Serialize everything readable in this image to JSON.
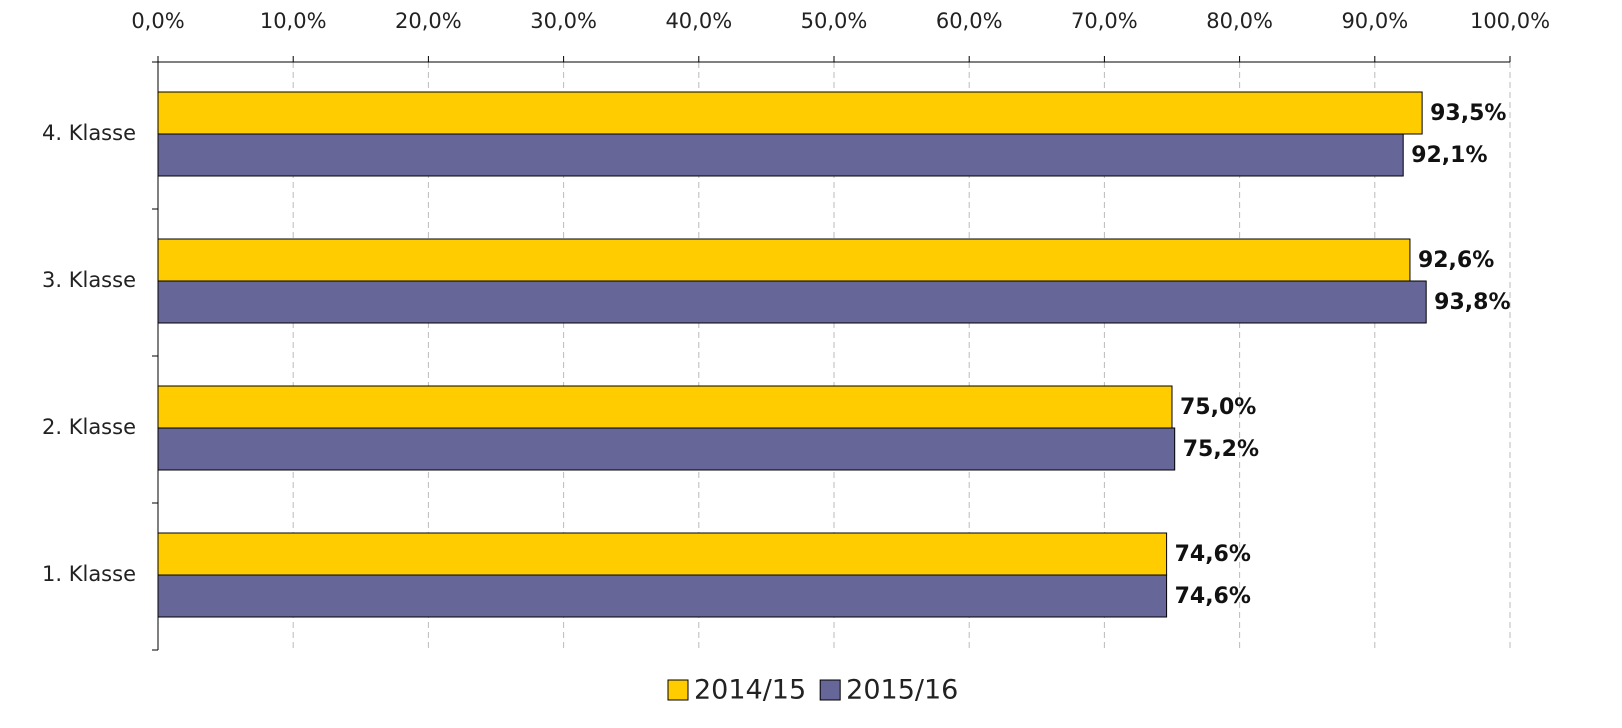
{
  "chart_data": {
    "type": "hbar",
    "categories": [
      "4. Klasse",
      "3. Klasse",
      "2. Klasse",
      "1. Klasse"
    ],
    "series": [
      {
        "name": "2014/15",
        "color": "#ffcc00",
        "values": [
          93.5,
          92.6,
          75.0,
          74.6
        ],
        "value_labels": [
          "93,5%",
          "92,6%",
          "75,0%",
          "74,6%"
        ]
      },
      {
        "name": "2015/16",
        "color": "#666699",
        "values": [
          92.1,
          93.8,
          75.2,
          74.6
        ],
        "value_labels": [
          "92,1%",
          "93,8%",
          "75,2%",
          "74,6%"
        ]
      }
    ],
    "xlim": [
      0,
      100
    ],
    "xticks": [
      {
        "value": 0,
        "label": "0,0%"
      },
      {
        "value": 10,
        "label": "10,0%"
      },
      {
        "value": 20,
        "label": "20,0%"
      },
      {
        "value": 30,
        "label": "30,0%"
      },
      {
        "value": 40,
        "label": "40,0%"
      },
      {
        "value": 50,
        "label": "50,0%"
      },
      {
        "value": 60,
        "label": "60,0%"
      },
      {
        "value": 70,
        "label": "70,0%"
      },
      {
        "value": 80,
        "label": "80,0%"
      },
      {
        "value": 90,
        "label": "90,0%"
      },
      {
        "value": 100,
        "label": "100,0%"
      }
    ],
    "grid": true,
    "legend": "bottom"
  }
}
